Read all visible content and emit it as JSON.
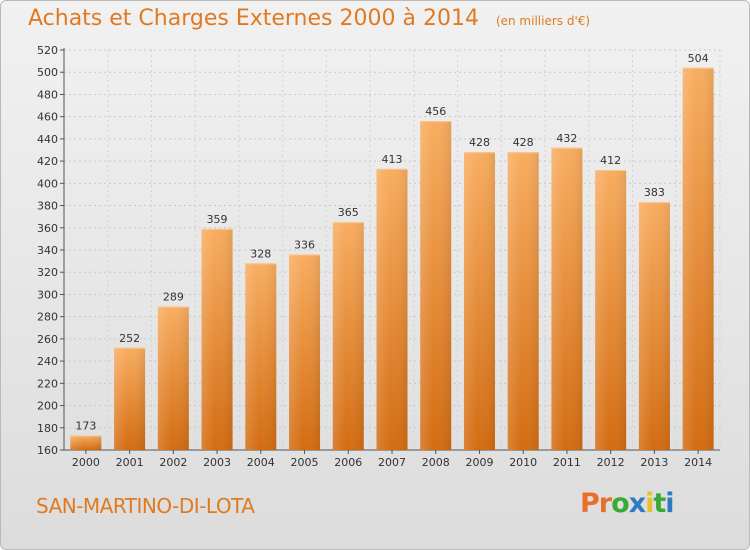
{
  "header": {
    "title": "Achats et Charges Externes 2000 à 2014",
    "unit": "(en milliers d'€)"
  },
  "footer": {
    "commune": "SAN-MARTINO-DI-LOTA",
    "logo": "Proxiti"
  },
  "colors": {
    "accent": "#e07a22",
    "bar_light": "#f7a95a",
    "bar_dark": "#d56e14",
    "logo_letters": [
      "#e8702a",
      "#e8702a",
      "#39a935",
      "#2e7bc4",
      "#e6c12a",
      "#39a935",
      "#2e7bc4"
    ]
  },
  "chart_data": {
    "type": "bar",
    "title": "Achats et Charges Externes 2000 à 2014",
    "subtitle": "(en milliers d'€)",
    "categories": [
      "2000",
      "2001",
      "2002",
      "2003",
      "2004",
      "2005",
      "2006",
      "2007",
      "2008",
      "2009",
      "2010",
      "2011",
      "2012",
      "2013",
      "2014"
    ],
    "values": [
      173,
      252,
      289,
      359,
      328,
      336,
      365,
      413,
      456,
      428,
      428,
      432,
      412,
      383,
      504
    ],
    "ylim": [
      160,
      520
    ],
    "yticks": [
      160,
      180,
      200,
      220,
      240,
      260,
      280,
      300,
      320,
      340,
      360,
      380,
      400,
      420,
      440,
      460,
      480,
      500,
      520
    ],
    "grid": true,
    "xlabel": "",
    "ylabel": ""
  }
}
